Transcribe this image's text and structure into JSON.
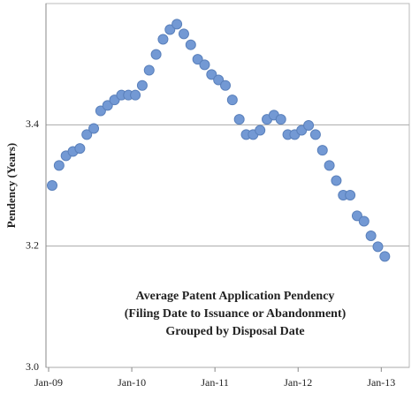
{
  "chart_data": {
    "type": "scatter",
    "y_label": "Pendency (Years)",
    "annotation": [
      "Average Patent Application Pendency",
      "(Filing Date to Issuance or Abandonment)",
      "Grouped by Disposal Date"
    ],
    "color": "#7399d4",
    "x": [
      "2009-01",
      "2009-02",
      "2009-03",
      "2009-04",
      "2009-05",
      "2009-06",
      "2009-07",
      "2009-08",
      "2009-09",
      "2009-10",
      "2009-11",
      "2009-12",
      "2010-01",
      "2010-02",
      "2010-03",
      "2010-04",
      "2010-05",
      "2010-06",
      "2010-07",
      "2010-08",
      "2010-09",
      "2010-10",
      "2010-11",
      "2010-12",
      "2011-01",
      "2011-02",
      "2011-03",
      "2011-04",
      "2011-05",
      "2011-06",
      "2011-07",
      "2011-08",
      "2011-09",
      "2011-10",
      "2011-11",
      "2011-12",
      "2012-01",
      "2012-02",
      "2012-03",
      "2012-04",
      "2012-05",
      "2012-06",
      "2012-07",
      "2012-08",
      "2012-09",
      "2012-10",
      "2012-11",
      "2012-12",
      "2013-01"
    ],
    "values": [
      3.3,
      3.333,
      3.349,
      3.356,
      3.361,
      3.384,
      3.394,
      3.423,
      3.432,
      3.441,
      3.449,
      3.449,
      3.449,
      3.465,
      3.49,
      3.516,
      3.541,
      3.557,
      3.566,
      3.55,
      3.532,
      3.508,
      3.499,
      3.483,
      3.474,
      3.465,
      3.441,
      3.409,
      3.384,
      3.384,
      3.391,
      3.409,
      3.416,
      3.409,
      3.384,
      3.384,
      3.391,
      3.399,
      3.384,
      3.358,
      3.333,
      3.308,
      3.284,
      3.284,
      3.25,
      3.241,
      3.217,
      3.199,
      3.183
    ],
    "ylim": [
      3.0,
      3.6
    ],
    "yticks": [
      {
        "value": 3.0,
        "label": "3.0"
      },
      {
        "value": 3.2,
        "label": "3.2"
      },
      {
        "value": 3.4,
        "label": "3.4"
      }
    ],
    "xticks": [
      {
        "value": "2009-01",
        "label": "Jan-09"
      },
      {
        "value": "2010-01",
        "label": "Jan-10"
      },
      {
        "value": "2011-01",
        "label": "Jan-11"
      },
      {
        "value": "2012-01",
        "label": "Jan-12"
      },
      {
        "value": "2013-01",
        "label": "Jan-13"
      }
    ],
    "grid": true
  }
}
